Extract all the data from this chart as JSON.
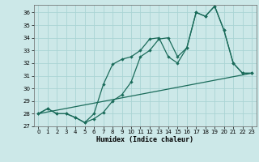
{
  "xlabel": "Humidex (Indice chaleur)",
  "background_color": "#cce8e8",
  "grid_color": "#aad4d4",
  "line_color": "#1a6b5a",
  "xlim": [
    -0.5,
    23.5
  ],
  "ylim": [
    27,
    36.6
  ],
  "yticks": [
    27,
    28,
    29,
    30,
    31,
    32,
    33,
    34,
    35,
    36
  ],
  "xticks": [
    0,
    1,
    2,
    3,
    4,
    5,
    6,
    7,
    8,
    9,
    10,
    11,
    12,
    13,
    14,
    15,
    16,
    17,
    18,
    19,
    20,
    21,
    22,
    23
  ],
  "line1_x": [
    0,
    1,
    2,
    3,
    4,
    5,
    6,
    7,
    8,
    9,
    10,
    11,
    12,
    13,
    14,
    15,
    16,
    17,
    18,
    19,
    20,
    21,
    22,
    23
  ],
  "line1_y": [
    28,
    28.4,
    28,
    28,
    27.7,
    27.3,
    27.6,
    28.1,
    29.0,
    29.5,
    30.5,
    32.5,
    33.0,
    33.9,
    34.0,
    32.5,
    33.2,
    36.0,
    35.7,
    36.5,
    34.6,
    32.0,
    31.2,
    31.2
  ],
  "line2_x": [
    0,
    1,
    2,
    3,
    4,
    5,
    6,
    7,
    8,
    9,
    10,
    11,
    12,
    13,
    14,
    15,
    16,
    17,
    18,
    19,
    20,
    21,
    22,
    23
  ],
  "line2_y": [
    28,
    28.4,
    28,
    28,
    27.7,
    27.3,
    28.0,
    30.3,
    31.9,
    32.3,
    32.5,
    33.0,
    33.9,
    34.0,
    32.5,
    32.0,
    33.2,
    36.0,
    35.7,
    36.5,
    34.6,
    32.0,
    31.2,
    31.2
  ],
  "line3_x": [
    0,
    23
  ],
  "line3_y": [
    28.0,
    31.2
  ],
  "linewidth": 0.9,
  "marker_size": 2.2
}
